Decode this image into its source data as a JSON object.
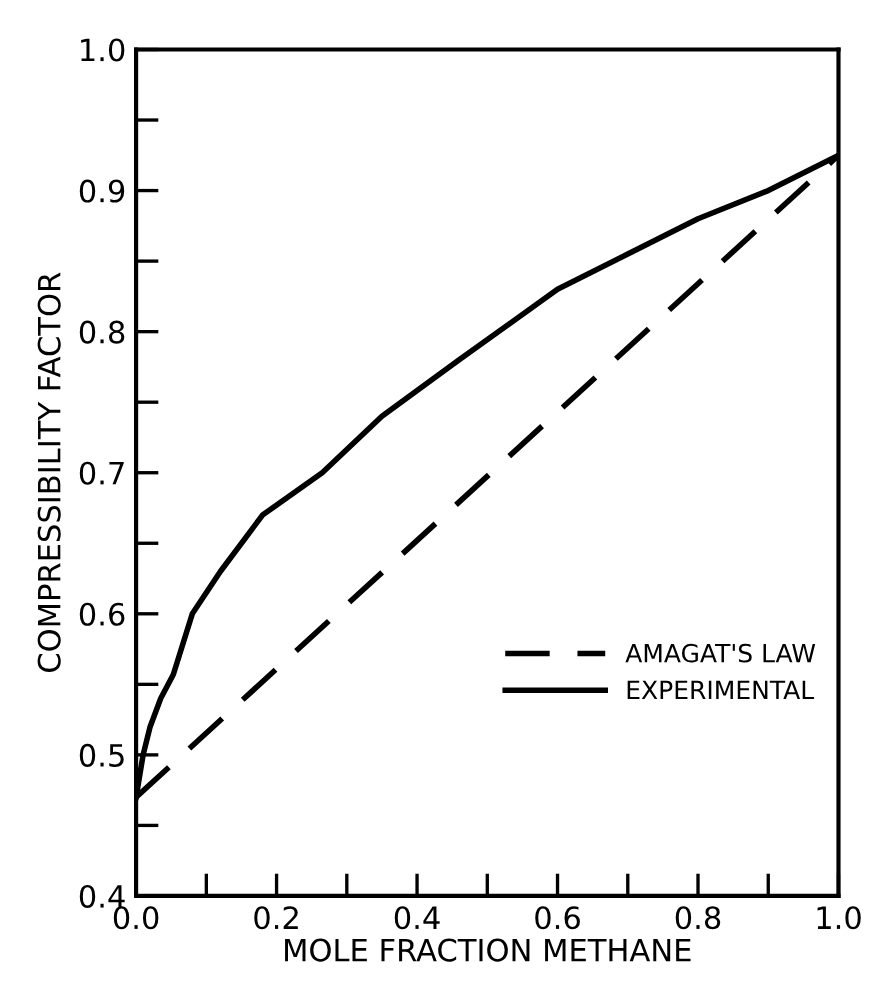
{
  "chart_data": {
    "type": "line",
    "xlabel": "MOLE FRACTION METHANE",
    "ylabel": "COMPRESSIBILITY FACTOR",
    "xlim": [
      0.0,
      1.0
    ],
    "ylim": [
      0.4,
      1.0
    ],
    "xticks": [
      {
        "value": 0.0,
        "label": "0.0"
      },
      {
        "value": 0.1,
        "label": null
      },
      {
        "value": 0.2,
        "label": "0.2"
      },
      {
        "value": 0.3,
        "label": null
      },
      {
        "value": 0.4,
        "label": "0.4"
      },
      {
        "value": 0.5,
        "label": null
      },
      {
        "value": 0.6,
        "label": "0.6"
      },
      {
        "value": 0.7,
        "label": null
      },
      {
        "value": 0.8,
        "label": "0.8"
      },
      {
        "value": 0.9,
        "label": null
      },
      {
        "value": 1.0,
        "label": "1.0"
      }
    ],
    "yticks": [
      0.4,
      {
        "value": 0.45,
        "label": null
      },
      0.5,
      {
        "value": 0.55,
        "label": null
      },
      0.6,
      {
        "value": 0.65,
        "label": null
      },
      0.7,
      {
        "value": 0.75,
        "label": null
      },
      0.8,
      {
        "value": 0.85,
        "label": null
      },
      0.9,
      {
        "value": 0.95,
        "label": null
      },
      {
        "value": 1.0,
        "label": "1.0"
      }
    ],
    "grid": false,
    "legend": "bottom right",
    "marker": "none",
    "series": [
      {
        "name": "AMAGAT'S LAW",
        "color": "#000000",
        "line_style": "dashed",
        "x": [
          0.0,
          1.0
        ],
        "values": [
          0.47,
          0.925
        ]
      },
      {
        "name": "EXPERIMENTAL",
        "color": "#000000",
        "line_style": "solid",
        "x": [
          0.0,
          0.01,
          0.02,
          0.035,
          0.053,
          0.08,
          0.12,
          0.18,
          0.265,
          0.35,
          0.46,
          0.6,
          0.7,
          0.8,
          0.9,
          1.0
        ],
        "values": [
          0.47,
          0.5,
          0.52,
          0.54,
          0.557,
          0.6,
          0.63,
          0.67,
          0.7,
          0.74,
          0.78,
          0.83,
          0.855,
          0.88,
          0.9,
          0.925
        ]
      }
    ]
  }
}
